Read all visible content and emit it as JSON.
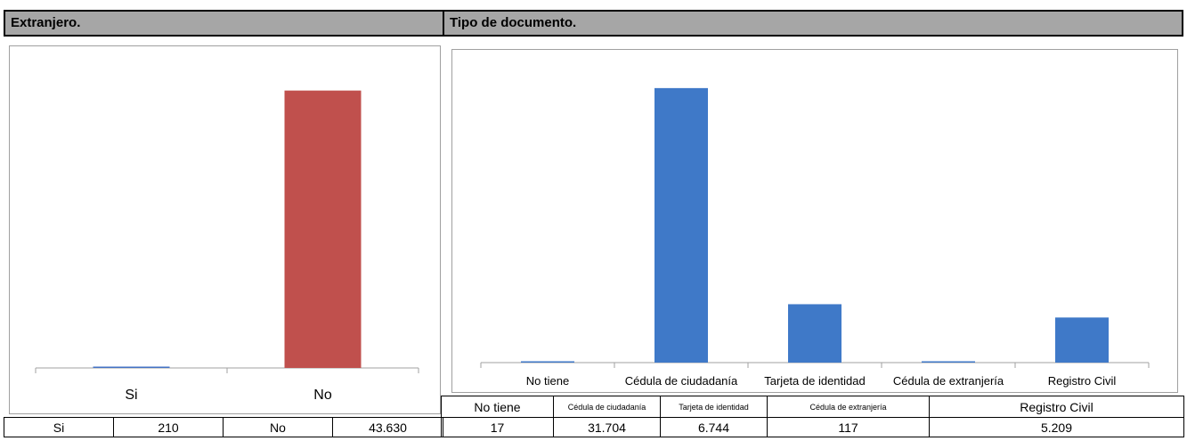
{
  "headers": {
    "left": "Extranjero.",
    "right": "Tipo de documento."
  },
  "colors": {
    "left_bar_si": "#4472c4",
    "left_bar_no": "#c0504d",
    "right_bar": "#3f79c8",
    "header_bg": "#a6a6a6"
  },
  "chart_data": [
    {
      "type": "bar",
      "title": "",
      "categories": [
        "Si",
        "No"
      ],
      "values": [
        210,
        43630
      ],
      "ylim": [
        0,
        44000
      ],
      "grid": false
    },
    {
      "type": "bar",
      "title": "",
      "categories": [
        "No tiene",
        "Cédula de ciudadanía",
        "Tarjeta de identidad",
        "Cédula de extranjería",
        "Registro Civil"
      ],
      "values": [
        17,
        31704,
        6744,
        117,
        5209
      ],
      "ylim": [
        0,
        32000
      ],
      "grid": false
    }
  ],
  "left_table": {
    "c1": "Si",
    "c2": "210",
    "c3": "No",
    "c4": "43.630"
  },
  "right_table": {
    "headers": [
      "No tiene",
      "Cédula de ciudadanía",
      "Tarjeta de identidad",
      "Cédula de extranjería",
      "Registro Civil"
    ],
    "values": [
      "17",
      "31.704",
      "6.744",
      "117",
      "5.209"
    ]
  }
}
